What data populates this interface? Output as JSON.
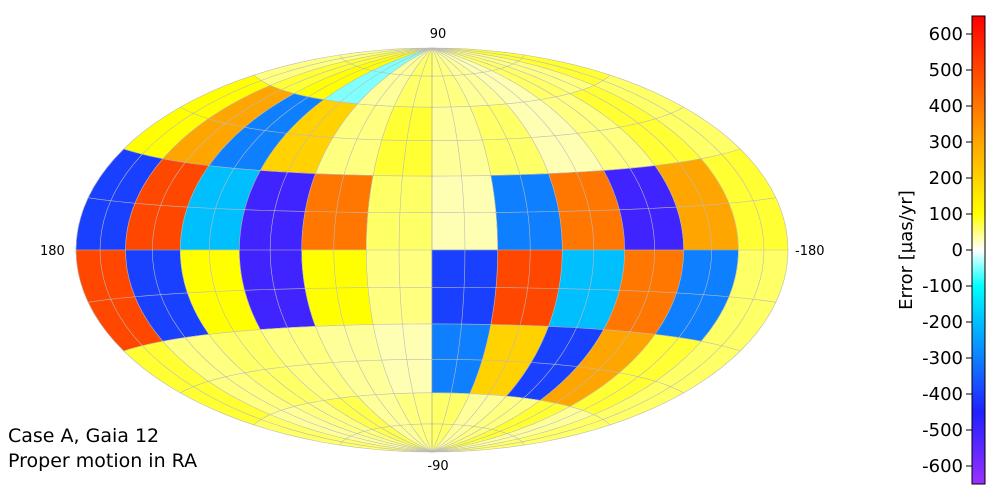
{
  "chart_data": {
    "type": "skymap",
    "projection": "hammer",
    "annotation": [
      "Case A, Gaia 12",
      "Proper motion in RA"
    ],
    "lat_labels": [
      "90",
      "-90"
    ],
    "lon_labels": [
      "180",
      "-180"
    ],
    "colorbar_label": "Error [µas/yr]",
    "clim": [
      -650,
      650
    ],
    "cticks": [
      600,
      500,
      400,
      300,
      200,
      100,
      0,
      -100,
      -200,
      -300,
      -400,
      -500,
      -600
    ],
    "colorscale": [
      [
        -650,
        "#9b30ff"
      ],
      [
        -450,
        "#2020ff"
      ],
      [
        -200,
        "#00bfff"
      ],
      [
        -100,
        "#00ffff"
      ],
      [
        0,
        "#ffffff"
      ],
      [
        100,
        "#ffff00"
      ],
      [
        300,
        "#ffa500"
      ],
      [
        650,
        "#ff0000"
      ]
    ],
    "lon_edges": [
      180,
      150,
      120,
      90,
      60,
      30,
      0,
      -30,
      -60,
      -90,
      -120,
      -150,
      -180
    ],
    "lat_edges": [
      90,
      60,
      30,
      0,
      -30,
      -60,
      -90
    ],
    "values": [
      [
        50,
        80,
        100,
        -50,
        40,
        60,
        50,
        40,
        30,
        60,
        50,
        80
      ],
      [
        100,
        300,
        -300,
        200,
        50,
        80,
        40,
        60,
        30,
        50,
        80,
        60
      ],
      [
        -400,
        500,
        -200,
        -500,
        400,
        60,
        30,
        -300,
        400,
        -500,
        300,
        80
      ],
      [
        500,
        -400,
        100,
        -500,
        100,
        50,
        -400,
        500,
        -200,
        400,
        -300,
        60
      ],
      [
        80,
        50,
        60,
        50,
        40,
        30,
        -300,
        200,
        -400,
        300,
        80,
        60
      ],
      [
        60,
        40,
        50,
        70,
        40,
        50,
        60,
        40,
        50,
        80,
        40,
        60
      ]
    ]
  }
}
